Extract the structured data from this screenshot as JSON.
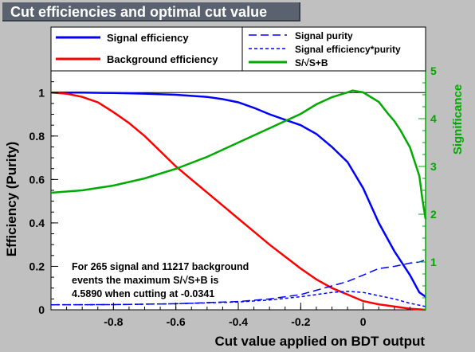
{
  "title": "Cut efficiencies and optimal cut value",
  "chart_data": {
    "type": "line",
    "xlabel": "Cut value applied on BDT output",
    "ylabel_left": "Efficiency (Purity)",
    "ylabel_right": "Significance",
    "xlim": [
      -1.0,
      0.2
    ],
    "ylim_left": [
      0,
      1.1
    ],
    "ylim_right": [
      0,
      5
    ],
    "x_ticks": [
      "-0.8",
      "-0.6",
      "-0.4",
      "-0.2",
      "0"
    ],
    "y_left_ticks": [
      "0",
      "0.2",
      "0.4",
      "0.6",
      "0.8",
      "1"
    ],
    "y_right_ticks": [
      "1",
      "2",
      "3",
      "4",
      "5"
    ],
    "reference_line_y": 1.0,
    "legend": {
      "left": [
        {
          "name": "Signal efficiency",
          "color": "#0000ff",
          "style": "solid"
        },
        {
          "name": "Background efficiency",
          "color": "#ff0000",
          "style": "solid"
        }
      ],
      "right": [
        {
          "name": "Signal purity",
          "color": "#0000ff",
          "style": "long-dash"
        },
        {
          "name": "Signal efficiency*purity",
          "color": "#0000ff",
          "style": "short-dash"
        },
        {
          "name": "S/√S+B",
          "color": "#00aa00",
          "style": "solid"
        }
      ]
    },
    "annotation": [
      "For 265 signal and 11217 background",
      "events the maximum S/√S+B is",
      "4.5890 when cutting at -0.0341"
    ],
    "series": [
      {
        "name": "Signal efficiency",
        "axis": "left",
        "color": "#0000ff",
        "style": "solid",
        "x": [
          -1.0,
          -0.9,
          -0.8,
          -0.7,
          -0.6,
          -0.5,
          -0.45,
          -0.4,
          -0.35,
          -0.3,
          -0.25,
          -0.2,
          -0.15,
          -0.1,
          -0.05,
          0.0,
          0.05,
          0.1,
          0.15,
          0.18,
          0.2
        ],
        "y": [
          1.0,
          1.0,
          0.998,
          0.995,
          0.99,
          0.98,
          0.97,
          0.955,
          0.93,
          0.9,
          0.875,
          0.85,
          0.81,
          0.75,
          0.68,
          0.56,
          0.4,
          0.27,
          0.16,
          0.08,
          0.06
        ]
      },
      {
        "name": "Background efficiency",
        "axis": "left",
        "color": "#ff0000",
        "style": "solid",
        "x": [
          -1.0,
          -0.95,
          -0.9,
          -0.85,
          -0.8,
          -0.75,
          -0.7,
          -0.65,
          -0.6,
          -0.55,
          -0.5,
          -0.45,
          -0.4,
          -0.35,
          -0.3,
          -0.25,
          -0.2,
          -0.15,
          -0.1,
          -0.05,
          0.0,
          0.05,
          0.1,
          0.15,
          0.2
        ],
        "y": [
          1.0,
          0.995,
          0.98,
          0.955,
          0.91,
          0.86,
          0.8,
          0.73,
          0.66,
          0.6,
          0.54,
          0.48,
          0.42,
          0.36,
          0.3,
          0.245,
          0.19,
          0.14,
          0.1,
          0.07,
          0.04,
          0.025,
          0.015,
          0.005,
          0.0
        ]
      },
      {
        "name": "Signal purity",
        "axis": "left",
        "color": "#0000ff",
        "style": "long-dash",
        "x": [
          -1.0,
          -0.8,
          -0.6,
          -0.4,
          -0.3,
          -0.2,
          -0.15,
          -0.1,
          -0.05,
          0.0,
          0.05,
          0.1,
          0.15,
          0.18,
          0.2
        ],
        "y": [
          0.023,
          0.024,
          0.028,
          0.038,
          0.05,
          0.07,
          0.09,
          0.11,
          0.13,
          0.16,
          0.19,
          0.2,
          0.215,
          0.22,
          0.23
        ]
      },
      {
        "name": "Signal efficiency*purity",
        "axis": "left",
        "color": "#0000ff",
        "style": "short-dash",
        "x": [
          -1.0,
          -0.8,
          -0.6,
          -0.4,
          -0.3,
          -0.2,
          -0.15,
          -0.1,
          -0.05,
          0.0,
          0.05,
          0.1,
          0.15,
          0.2
        ],
        "y": [
          0.023,
          0.024,
          0.028,
          0.036,
          0.045,
          0.06,
          0.07,
          0.08,
          0.085,
          0.08,
          0.065,
          0.05,
          0.03,
          0.015
        ]
      },
      {
        "name": "S/√S+B",
        "axis": "right",
        "color": "#00aa00",
        "style": "solid",
        "x": [
          -1.0,
          -0.9,
          -0.8,
          -0.7,
          -0.6,
          -0.5,
          -0.4,
          -0.3,
          -0.2,
          -0.15,
          -0.1,
          -0.05,
          -0.0341,
          0.0,
          0.05,
          0.08,
          0.1,
          0.12,
          0.15,
          0.17,
          0.18,
          0.19,
          0.2
        ],
        "y": [
          2.45,
          2.5,
          2.6,
          2.75,
          2.95,
          3.2,
          3.5,
          3.8,
          4.1,
          4.3,
          4.45,
          4.55,
          4.589,
          4.55,
          4.35,
          4.1,
          3.95,
          3.75,
          3.4,
          3.0,
          2.8,
          2.3,
          1.9
        ]
      }
    ]
  }
}
